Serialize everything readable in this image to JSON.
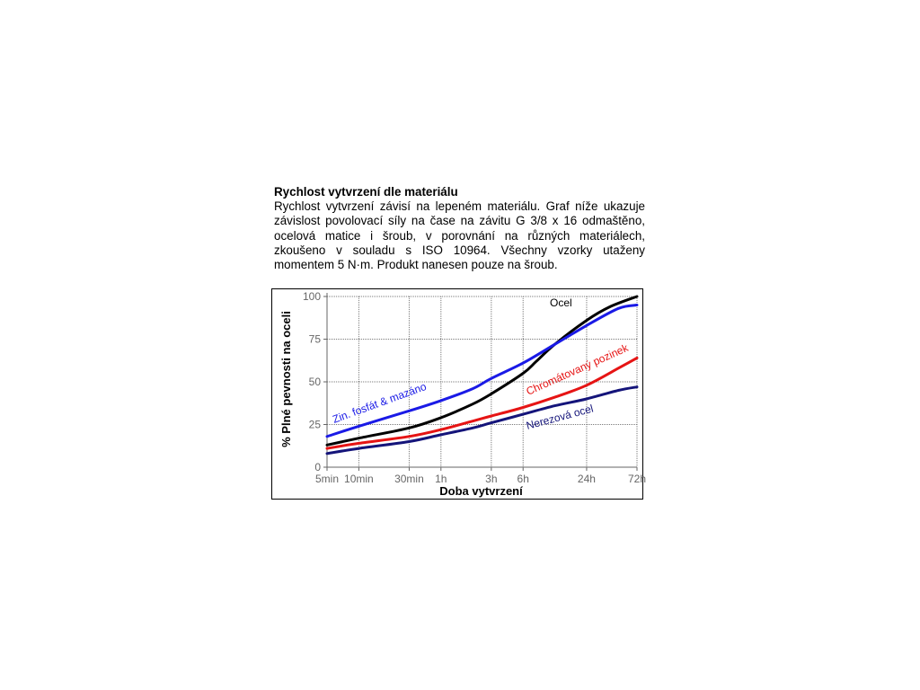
{
  "article": {
    "heading": "Rychlost vytvrzení dle materiálu",
    "body": "Rychlost vytvrzení závisí na lepeném materiálu. Graf níže ukazuje závislost povolovací síly na čase na  závitu G 3/8 x 16 odmaštěno, ocelová matice i šroub, v porovnání na různých materiálech, zkoušeno v souladu s ISO 10964. Všechny vzorky utaženy momentem 5 N·m. Produkt nanesen pouze na šroub."
  },
  "chart_data": {
    "type": "line",
    "title": "",
    "xlabel": "Doba vytvrzení",
    "ylabel": "% Plné pevnosti na oceli",
    "x_scale": "log",
    "x_ticks": [
      {
        "label": "5min",
        "hours": 0.0833
      },
      {
        "label": "10min",
        "hours": 0.1667
      },
      {
        "label": "30min",
        "hours": 0.5
      },
      {
        "label": "1h",
        "hours": 1
      },
      {
        "label": "3h",
        "hours": 3
      },
      {
        "label": "6h",
        "hours": 6
      },
      {
        "label": "24h",
        "hours": 24
      },
      {
        "label": "72h",
        "hours": 72
      }
    ],
    "y_ticks": [
      0,
      25,
      50,
      75,
      100
    ],
    "ylim": [
      0,
      100
    ],
    "grid": true,
    "series": [
      {
        "name": "Ocel",
        "color": "#000000",
        "points": [
          [
            0.0833,
            13
          ],
          [
            0.1667,
            17
          ],
          [
            0.5,
            23
          ],
          [
            1,
            29
          ],
          [
            2,
            37
          ],
          [
            3,
            43
          ],
          [
            6,
            55
          ],
          [
            8,
            62
          ],
          [
            12,
            72
          ],
          [
            24,
            86
          ],
          [
            40,
            94
          ],
          [
            72,
            100
          ]
        ]
      },
      {
        "name": "Zin. fosfát & mazáno",
        "color": "#1a1ae6",
        "points": [
          [
            0.0833,
            18
          ],
          [
            0.1667,
            24
          ],
          [
            0.5,
            33
          ],
          [
            1,
            39
          ],
          [
            2,
            46
          ],
          [
            3,
            52
          ],
          [
            6,
            61
          ],
          [
            12,
            72
          ],
          [
            24,
            83
          ],
          [
            48,
            93
          ],
          [
            72,
            95
          ]
        ]
      },
      {
        "name": "Chromátovaný pozinek",
        "color": "#e61414",
        "points": [
          [
            0.0833,
            11
          ],
          [
            0.1667,
            14
          ],
          [
            0.5,
            18
          ],
          [
            1,
            22
          ],
          [
            2,
            27
          ],
          [
            3,
            30
          ],
          [
            6,
            35
          ],
          [
            12,
            41
          ],
          [
            24,
            48
          ],
          [
            48,
            58
          ],
          [
            72,
            64
          ]
        ]
      },
      {
        "name": "Nerezová ocel",
        "color": "#14147a",
        "points": [
          [
            0.0833,
            8
          ],
          [
            0.1667,
            11
          ],
          [
            0.5,
            15
          ],
          [
            1,
            19
          ],
          [
            2,
            23
          ],
          [
            3,
            26
          ],
          [
            6,
            31
          ],
          [
            12,
            36
          ],
          [
            24,
            40
          ],
          [
            48,
            45
          ],
          [
            72,
            47
          ]
        ]
      }
    ]
  }
}
